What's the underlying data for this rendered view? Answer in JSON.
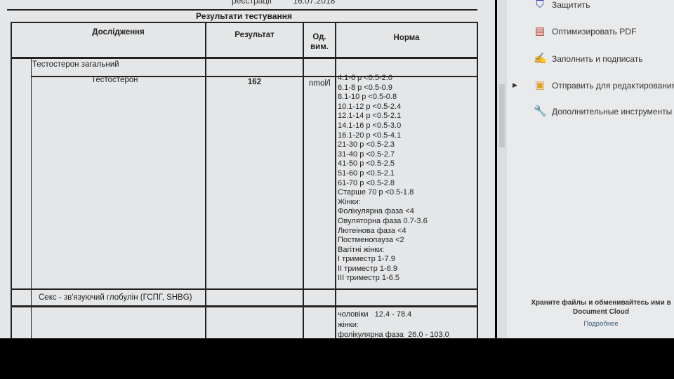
{
  "document": {
    "header_partial": {
      "label": "реєстрації",
      "date": "16.07.2018"
    },
    "title": "Результати тестування",
    "columns": [
      "Дослідження",
      "Результат",
      "Од. вим.",
      "Норма"
    ],
    "group": "Тестостерон загальний",
    "test": {
      "name": "Тестостерон",
      "result": "162",
      "unit": "nmol/l",
      "norm": [
        "4.1-6 р <0.5-2.0",
        "6.1-8 р <0.5-0.9",
        "8.1-10 р <0.5-0.8",
        "10.1-12 р <0.5-2.4",
        "12.1-14 р <0.5-2.1",
        "14.1-16 р <0.5-3.0",
        "16.1-20 р <0.5-4.1",
        "21-30 р <0.5-2.3",
        "31-40 р <0.5-2.7",
        "41-50 р <0.5-2.5",
        "51-60 р <0.5-2.1",
        "61-70 р <0.5-2.8",
        "Старше 70 р <0.5-1.8",
        "Жінки:",
        "Фолікулярна фаза <4",
        "Овуляторна фаза 0.7-3.6",
        "Лютеінова фаза <4",
        "Постменопауза <2",
        "Вагітні жінки:",
        "I триместр 1-7.9",
        "II триместр 1-6.9",
        "III триместр 1-6.5"
      ]
    },
    "group2": "Секс - зв'язуючий глобулін (ГСПГ, SHBG)",
    "norm2": [
      "чоловіки   12.4 - 78.4",
      "жінки:",
      "фолікулярна фаза  26.0 - 103.0"
    ]
  },
  "tools_panel": {
    "items": [
      {
        "label": "Защитить",
        "icon": "shield-icon"
      },
      {
        "label": "Оптимизировать PDF",
        "icon": "optimize-pdf-icon"
      },
      {
        "label": "Заполнить и подписать",
        "icon": "sign-icon"
      },
      {
        "label": "Отправить для редактирования",
        "icon": "send-edit-icon"
      },
      {
        "label": "Дополнительные инструменты",
        "icon": "wrench-icon"
      }
    ],
    "promo": "Храните файлы и обменивайтесь ими в Document Cloud",
    "more_link": "Подробнее"
  }
}
